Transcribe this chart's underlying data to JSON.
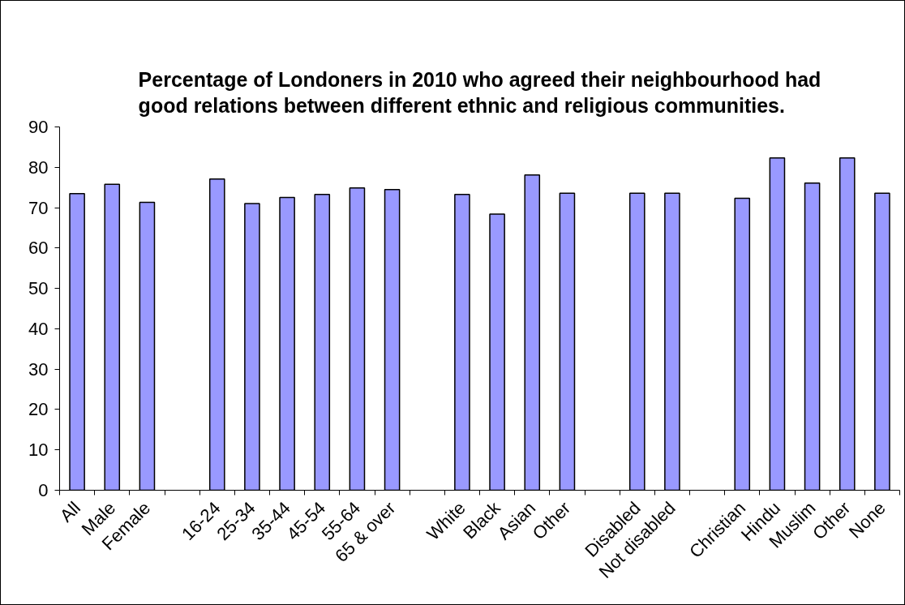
{
  "chart_data": {
    "type": "bar",
    "title": "Percentage of Londoners in 2010 who agreed their neighbourhood had good relations between different ethnic and religious communities.",
    "categories": [
      "All",
      "Male",
      "Female",
      null,
      "16-24",
      "25-34",
      "35-44",
      "45-54",
      "55-64",
      "65 & over",
      null,
      "White",
      "Black",
      "Asian",
      "Other",
      null,
      "Disabled",
      "Not disabled",
      null,
      "Christian",
      "Hindu",
      "Muslim",
      "Other",
      "None"
    ],
    "values": [
      73.5,
      75.8,
      71.3,
      null,
      77.1,
      71.0,
      72.5,
      73.3,
      74.9,
      74.5,
      null,
      73.3,
      68.4,
      78.1,
      73.6,
      null,
      73.6,
      73.6,
      null,
      72.3,
      82.3,
      76.1,
      82.3,
      73.6
    ],
    "color": "#9999ff",
    "ylim": [
      0,
      90
    ],
    "yticks": [
      0,
      10,
      20,
      30,
      40,
      50,
      60,
      70,
      80,
      90
    ],
    "grid": false
  }
}
